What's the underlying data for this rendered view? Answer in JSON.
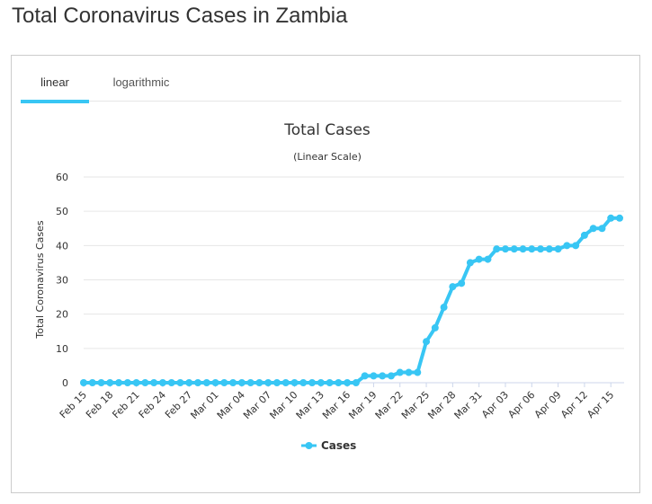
{
  "page": {
    "title": "Total Coronavirus Cases in Zambia"
  },
  "tabs": [
    {
      "label": "linear"
    },
    {
      "label": "logarithmic"
    }
  ],
  "colors": {
    "accent": "#38c6f4",
    "grid": "#e6e6e6",
    "text": "#333333"
  },
  "chart_data": {
    "type": "line",
    "title": "Total Cases",
    "subtitle": "(Linear Scale)",
    "ylabel": "Total Coronavirus Cases",
    "xlabel": "",
    "ylim": [
      0,
      60
    ],
    "yticks": [
      0,
      10,
      20,
      30,
      40,
      50,
      60
    ],
    "grid": true,
    "legend": "bottom-center",
    "x": [
      "Feb 15",
      "Feb 16",
      "Feb 17",
      "Feb 18",
      "Feb 19",
      "Feb 20",
      "Feb 21",
      "Feb 22",
      "Feb 23",
      "Feb 24",
      "Feb 25",
      "Feb 26",
      "Feb 27",
      "Feb 28",
      "Feb 29",
      "Mar 01",
      "Mar 02",
      "Mar 03",
      "Mar 04",
      "Mar 05",
      "Mar 06",
      "Mar 07",
      "Mar 08",
      "Mar 09",
      "Mar 10",
      "Mar 11",
      "Mar 12",
      "Mar 13",
      "Mar 14",
      "Mar 15",
      "Mar 16",
      "Mar 17",
      "Mar 18",
      "Mar 19",
      "Mar 20",
      "Mar 21",
      "Mar 22",
      "Mar 23",
      "Mar 24",
      "Mar 25",
      "Mar 26",
      "Mar 27",
      "Mar 28",
      "Mar 29",
      "Mar 30",
      "Mar 31",
      "Apr 01",
      "Apr 02",
      "Apr 03",
      "Apr 04",
      "Apr 05",
      "Apr 06",
      "Apr 07",
      "Apr 08",
      "Apr 09",
      "Apr 10",
      "Apr 11",
      "Apr 12",
      "Apr 13",
      "Apr 14",
      "Apr 15",
      "Apr 16"
    ],
    "xtick_labels": [
      "Feb 15",
      "Feb 18",
      "Feb 21",
      "Feb 24",
      "Feb 27",
      "Mar 01",
      "Mar 04",
      "Mar 07",
      "Mar 10",
      "Mar 13",
      "Mar 16",
      "Mar 19",
      "Mar 22",
      "Mar 25",
      "Mar 28",
      "Mar 31",
      "Apr 03",
      "Apr 06",
      "Apr 09",
      "Apr 12",
      "Apr 15"
    ],
    "series": [
      {
        "name": "Cases",
        "color": "#38c6f4",
        "values": [
          0,
          0,
          0,
          0,
          0,
          0,
          0,
          0,
          0,
          0,
          0,
          0,
          0,
          0,
          0,
          0,
          0,
          0,
          0,
          0,
          0,
          0,
          0,
          0,
          0,
          0,
          0,
          0,
          0,
          0,
          0,
          0,
          2,
          2,
          2,
          2,
          3,
          3,
          3,
          12,
          16,
          22,
          28,
          29,
          35,
          36,
          36,
          39,
          39,
          39,
          39,
          39,
          39,
          39,
          39,
          40,
          40,
          43,
          45,
          45,
          48,
          48
        ]
      }
    ]
  }
}
